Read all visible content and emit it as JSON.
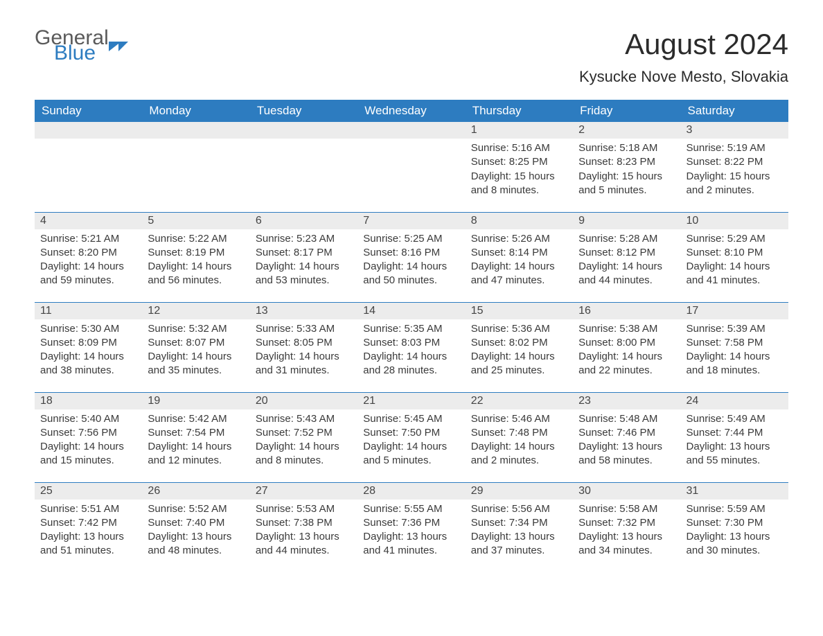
{
  "branding": {
    "logo_word1": "General",
    "logo_word2": "Blue",
    "logo_color_gray": "#5a5a5a",
    "logo_color_blue": "#2d7cc0"
  },
  "header": {
    "title": "August 2024",
    "location": "Kysucke Nove Mesto, Slovakia"
  },
  "calendar": {
    "type": "table",
    "header_bg": "#2d7cc0",
    "header_fg": "#ffffff",
    "daynum_bg": "#ececec",
    "row_border_color": "#2d7cc0",
    "body_fontsize": 15,
    "columns": [
      "Sunday",
      "Monday",
      "Tuesday",
      "Wednesday",
      "Thursday",
      "Friday",
      "Saturday"
    ],
    "weeks": [
      [
        {
          "day": "",
          "sunrise": "",
          "sunset": "",
          "daylight": ""
        },
        {
          "day": "",
          "sunrise": "",
          "sunset": "",
          "daylight": ""
        },
        {
          "day": "",
          "sunrise": "",
          "sunset": "",
          "daylight": ""
        },
        {
          "day": "",
          "sunrise": "",
          "sunset": "",
          "daylight": ""
        },
        {
          "day": "1",
          "sunrise": "Sunrise: 5:16 AM",
          "sunset": "Sunset: 8:25 PM",
          "daylight": "Daylight: 15 hours and 8 minutes."
        },
        {
          "day": "2",
          "sunrise": "Sunrise: 5:18 AM",
          "sunset": "Sunset: 8:23 PM",
          "daylight": "Daylight: 15 hours and 5 minutes."
        },
        {
          "day": "3",
          "sunrise": "Sunrise: 5:19 AM",
          "sunset": "Sunset: 8:22 PM",
          "daylight": "Daylight: 15 hours and 2 minutes."
        }
      ],
      [
        {
          "day": "4",
          "sunrise": "Sunrise: 5:21 AM",
          "sunset": "Sunset: 8:20 PM",
          "daylight": "Daylight: 14 hours and 59 minutes."
        },
        {
          "day": "5",
          "sunrise": "Sunrise: 5:22 AM",
          "sunset": "Sunset: 8:19 PM",
          "daylight": "Daylight: 14 hours and 56 minutes."
        },
        {
          "day": "6",
          "sunrise": "Sunrise: 5:23 AM",
          "sunset": "Sunset: 8:17 PM",
          "daylight": "Daylight: 14 hours and 53 minutes."
        },
        {
          "day": "7",
          "sunrise": "Sunrise: 5:25 AM",
          "sunset": "Sunset: 8:16 PM",
          "daylight": "Daylight: 14 hours and 50 minutes."
        },
        {
          "day": "8",
          "sunrise": "Sunrise: 5:26 AM",
          "sunset": "Sunset: 8:14 PM",
          "daylight": "Daylight: 14 hours and 47 minutes."
        },
        {
          "day": "9",
          "sunrise": "Sunrise: 5:28 AM",
          "sunset": "Sunset: 8:12 PM",
          "daylight": "Daylight: 14 hours and 44 minutes."
        },
        {
          "day": "10",
          "sunrise": "Sunrise: 5:29 AM",
          "sunset": "Sunset: 8:10 PM",
          "daylight": "Daylight: 14 hours and 41 minutes."
        }
      ],
      [
        {
          "day": "11",
          "sunrise": "Sunrise: 5:30 AM",
          "sunset": "Sunset: 8:09 PM",
          "daylight": "Daylight: 14 hours and 38 minutes."
        },
        {
          "day": "12",
          "sunrise": "Sunrise: 5:32 AM",
          "sunset": "Sunset: 8:07 PM",
          "daylight": "Daylight: 14 hours and 35 minutes."
        },
        {
          "day": "13",
          "sunrise": "Sunrise: 5:33 AM",
          "sunset": "Sunset: 8:05 PM",
          "daylight": "Daylight: 14 hours and 31 minutes."
        },
        {
          "day": "14",
          "sunrise": "Sunrise: 5:35 AM",
          "sunset": "Sunset: 8:03 PM",
          "daylight": "Daylight: 14 hours and 28 minutes."
        },
        {
          "day": "15",
          "sunrise": "Sunrise: 5:36 AM",
          "sunset": "Sunset: 8:02 PM",
          "daylight": "Daylight: 14 hours and 25 minutes."
        },
        {
          "day": "16",
          "sunrise": "Sunrise: 5:38 AM",
          "sunset": "Sunset: 8:00 PM",
          "daylight": "Daylight: 14 hours and 22 minutes."
        },
        {
          "day": "17",
          "sunrise": "Sunrise: 5:39 AM",
          "sunset": "Sunset: 7:58 PM",
          "daylight": "Daylight: 14 hours and 18 minutes."
        }
      ],
      [
        {
          "day": "18",
          "sunrise": "Sunrise: 5:40 AM",
          "sunset": "Sunset: 7:56 PM",
          "daylight": "Daylight: 14 hours and 15 minutes."
        },
        {
          "day": "19",
          "sunrise": "Sunrise: 5:42 AM",
          "sunset": "Sunset: 7:54 PM",
          "daylight": "Daylight: 14 hours and 12 minutes."
        },
        {
          "day": "20",
          "sunrise": "Sunrise: 5:43 AM",
          "sunset": "Sunset: 7:52 PM",
          "daylight": "Daylight: 14 hours and 8 minutes."
        },
        {
          "day": "21",
          "sunrise": "Sunrise: 5:45 AM",
          "sunset": "Sunset: 7:50 PM",
          "daylight": "Daylight: 14 hours and 5 minutes."
        },
        {
          "day": "22",
          "sunrise": "Sunrise: 5:46 AM",
          "sunset": "Sunset: 7:48 PM",
          "daylight": "Daylight: 14 hours and 2 minutes."
        },
        {
          "day": "23",
          "sunrise": "Sunrise: 5:48 AM",
          "sunset": "Sunset: 7:46 PM",
          "daylight": "Daylight: 13 hours and 58 minutes."
        },
        {
          "day": "24",
          "sunrise": "Sunrise: 5:49 AM",
          "sunset": "Sunset: 7:44 PM",
          "daylight": "Daylight: 13 hours and 55 minutes."
        }
      ],
      [
        {
          "day": "25",
          "sunrise": "Sunrise: 5:51 AM",
          "sunset": "Sunset: 7:42 PM",
          "daylight": "Daylight: 13 hours and 51 minutes."
        },
        {
          "day": "26",
          "sunrise": "Sunrise: 5:52 AM",
          "sunset": "Sunset: 7:40 PM",
          "daylight": "Daylight: 13 hours and 48 minutes."
        },
        {
          "day": "27",
          "sunrise": "Sunrise: 5:53 AM",
          "sunset": "Sunset: 7:38 PM",
          "daylight": "Daylight: 13 hours and 44 minutes."
        },
        {
          "day": "28",
          "sunrise": "Sunrise: 5:55 AM",
          "sunset": "Sunset: 7:36 PM",
          "daylight": "Daylight: 13 hours and 41 minutes."
        },
        {
          "day": "29",
          "sunrise": "Sunrise: 5:56 AM",
          "sunset": "Sunset: 7:34 PM",
          "daylight": "Daylight: 13 hours and 37 minutes."
        },
        {
          "day": "30",
          "sunrise": "Sunrise: 5:58 AM",
          "sunset": "Sunset: 7:32 PM",
          "daylight": "Daylight: 13 hours and 34 minutes."
        },
        {
          "day": "31",
          "sunrise": "Sunrise: 5:59 AM",
          "sunset": "Sunset: 7:30 PM",
          "daylight": "Daylight: 13 hours and 30 minutes."
        }
      ]
    ]
  }
}
